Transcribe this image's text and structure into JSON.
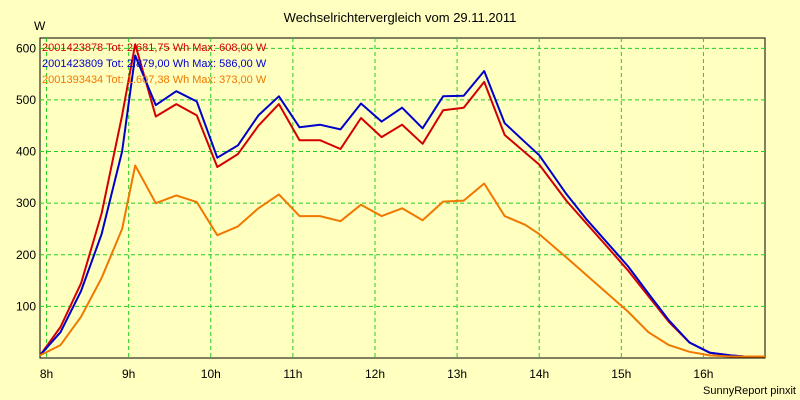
{
  "chart_data": {
    "type": "line",
    "title": "Wechselrichtervergleich vom 29.11.2011",
    "ylabel": "W",
    "footer": "SunnyReport pinxit",
    "xlim": [
      7.92,
      16.75
    ],
    "ylim": [
      0,
      620
    ],
    "grid": true,
    "legend_position": "top-left",
    "x_ticks": [
      8,
      9,
      10,
      11,
      12,
      13,
      14,
      15,
      16
    ],
    "x_tick_labels": [
      "8h",
      "9h",
      "10h",
      "11h",
      "12h",
      "13h",
      "14h",
      "15h",
      "16h"
    ],
    "y_ticks": [
      100,
      200,
      300,
      400,
      500,
      600
    ],
    "y_tick_labels": [
      "100",
      "200",
      "300",
      "400",
      "500",
      "600"
    ],
    "x": [
      7.92,
      8.17,
      8.42,
      8.67,
      8.92,
      9.08,
      9.33,
      9.58,
      9.83,
      10.08,
      10.33,
      10.58,
      10.83,
      11.08,
      11.33,
      11.58,
      11.83,
      12.08,
      12.33,
      12.58,
      12.83,
      13.08,
      13.33,
      13.58,
      13.83,
      14.0,
      14.33,
      14.58,
      14.83,
      15.08,
      15.33,
      15.58,
      15.83,
      16.08,
      16.33,
      16.5,
      16.75
    ],
    "series": [
      {
        "name": "2001423878",
        "legend_text": "2001423878 Tot: 2.681,75 Wh Max: 608,00 W",
        "color": "#d40000",
        "values": [
          5,
          60,
          145,
          280,
          470,
          608,
          468,
          492,
          470,
          370,
          395,
          450,
          492,
          422,
          422,
          405,
          465,
          428,
          452,
          415,
          480,
          485,
          535,
          432,
          398,
          375,
          305,
          260,
          215,
          170,
          120,
          70,
          30,
          10,
          5,
          3,
          3
        ]
      },
      {
        "name": "2001423809",
        "legend_text": "2001423809 Tot: 2.879,00 Wh Max: 586,00 W",
        "color": "#0000cc",
        "values": [
          5,
          50,
          130,
          240,
          400,
          586,
          490,
          517,
          497,
          388,
          412,
          470,
          507,
          447,
          452,
          443,
          493,
          458,
          485,
          445,
          507,
          508,
          556,
          455,
          418,
          393,
          318,
          268,
          223,
          178,
          125,
          73,
          30,
          10,
          5,
          3,
          3
        ]
      },
      {
        "name": "2001393434",
        "legend_text": "2001393434 Tot: 1.607,38 Wh Max: 373,00 W",
        "color": "#f07800",
        "values": [
          5,
          25,
          80,
          155,
          250,
          373,
          300,
          315,
          302,
          238,
          255,
          290,
          317,
          275,
          275,
          265,
          297,
          275,
          290,
          267,
          303,
          305,
          338,
          275,
          258,
          240,
          195,
          160,
          125,
          90,
          50,
          25,
          12,
          5,
          3,
          3,
          3
        ]
      }
    ]
  }
}
